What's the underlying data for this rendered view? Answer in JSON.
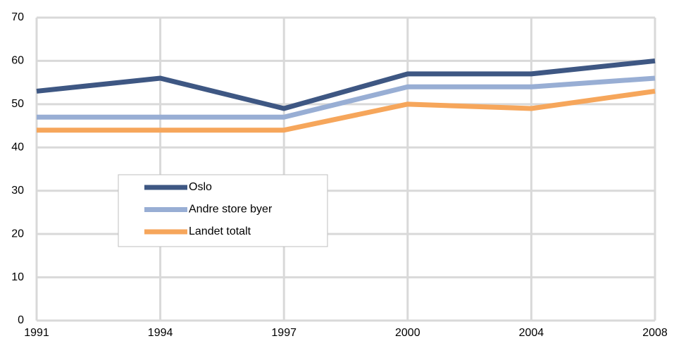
{
  "chart_data": {
    "type": "line",
    "categories": [
      "1991",
      "1994",
      "1997",
      "2000",
      "2004",
      "2008"
    ],
    "series": [
      {
        "name": "Oslo",
        "color": "#3e5783",
        "values": [
          53,
          56,
          49,
          57,
          57,
          60
        ]
      },
      {
        "name": "Andre store byer",
        "color": "#98aed4",
        "values": [
          47,
          47,
          47,
          54,
          54,
          56
        ]
      },
      {
        "name": "Landet totalt",
        "color": "#f6a65b",
        "values": [
          44,
          44,
          44,
          50,
          49,
          53
        ]
      }
    ],
    "ylim": [
      0,
      70
    ],
    "yticks": [
      0,
      10,
      20,
      30,
      40,
      50,
      60,
      70
    ],
    "grid": true
  }
}
